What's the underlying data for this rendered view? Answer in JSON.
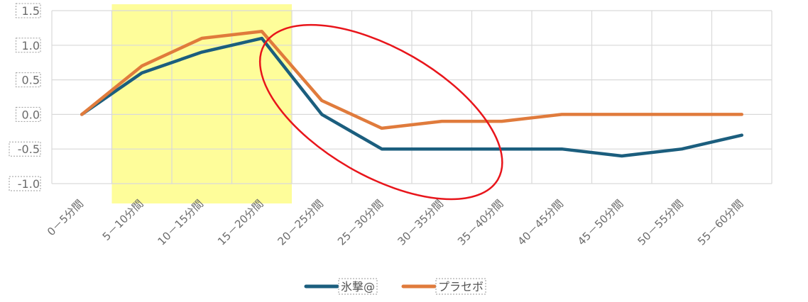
{
  "chart_data": {
    "type": "line",
    "categories": [
      "0－5分間",
      "5－10分間",
      "10－15分間",
      "15－20分間",
      "20－25分間",
      "25－30分間",
      "30－35分間",
      "35－40分間",
      "40－45分間",
      "45－50分間",
      "50－55分間",
      "55－60分間"
    ],
    "series": [
      {
        "name": "氷撃@",
        "color": "#1b5e7e",
        "values": [
          0.0,
          0.6,
          0.9,
          1.1,
          0.0,
          -0.5,
          -0.5,
          -0.5,
          -0.5,
          -0.6,
          -0.5,
          -0.3
        ]
      },
      {
        "name": "プラセボ",
        "color": "#e07b3c",
        "values": [
          0.0,
          0.7,
          1.1,
          1.2,
          0.2,
          -0.2,
          -0.1,
          -0.1,
          0.0,
          0.0,
          0.0,
          0.0
        ]
      }
    ],
    "yticks": [
      "1.5",
      "1.0",
      "0.5",
      "0.0",
      "-0.5",
      "-1.0"
    ],
    "ylim": [
      -1.0,
      1.5
    ],
    "grid": true,
    "legend": "bottom",
    "highlight": {
      "from_category": 1,
      "to_category": 3,
      "color": "#fefd9a"
    },
    "annotation_ellipse": {
      "color": "#e8151b",
      "x_from": 3,
      "x_to": 7.0,
      "y_from": -1.1,
      "y_to": 1.25
    }
  }
}
